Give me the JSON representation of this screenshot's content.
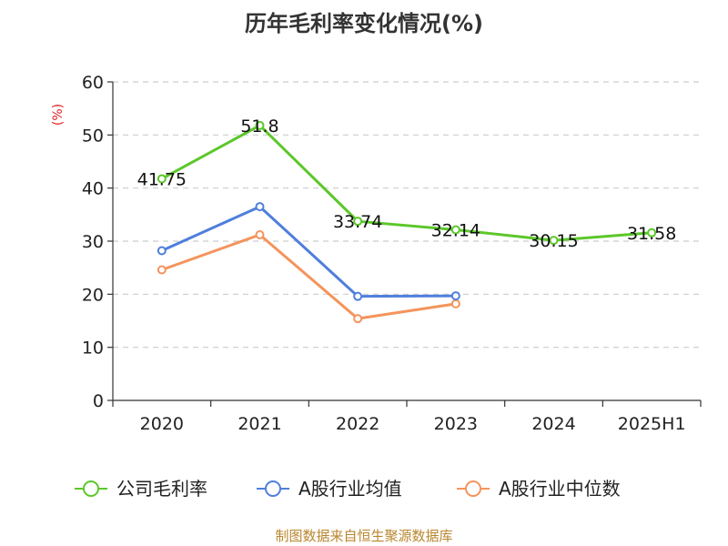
{
  "chart_data": {
    "type": "line",
    "title": "历年毛利率变化情况(%)",
    "ylabel": "(%)",
    "ylim": [
      0,
      60
    ],
    "yticks": [
      0,
      10,
      20,
      30,
      40,
      50,
      60
    ],
    "categories": [
      "2020",
      "2021",
      "2022",
      "2023",
      "2024",
      "2025H1"
    ],
    "grid": true,
    "legend_position": "bottom",
    "series": [
      {
        "name": "公司毛利率",
        "color": "#5cc72a",
        "values": [
          41.75,
          51.8,
          33.74,
          32.14,
          30.15,
          31.58
        ],
        "labels": [
          "41.75",
          "51.8",
          "33.74",
          "32.14",
          "30.15",
          "31.58"
        ]
      },
      {
        "name": "A股行业均值",
        "color": "#4f7fdc",
        "values": [
          28.2,
          36.5,
          19.6,
          19.7,
          null,
          null
        ]
      },
      {
        "name": "A股行业中位数",
        "color": "#f4945c",
        "values": [
          24.6,
          31.2,
          15.4,
          18.2,
          null,
          null
        ]
      }
    ]
  },
  "source_text": "制图数据来自恒生聚源数据库"
}
